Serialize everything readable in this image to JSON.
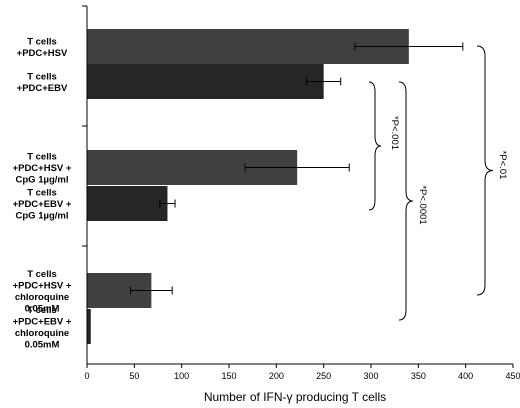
{
  "chart_data": {
    "type": "bar",
    "orientation": "horizontal",
    "categories": [
      [
        "T cells",
        "+PDC+HSV"
      ],
      [
        "T cells",
        "+PDC+EBV"
      ],
      [
        "T cells",
        "+PDC+HSV +",
        "CpG 1µg/ml"
      ],
      [
        "T cells",
        "+PDC+EBV +",
        "CpG 1µg/ml"
      ],
      [
        "T cells",
        "+PDC+HSV +",
        "chloroquine",
        "0.05mM"
      ],
      [
        "T cells",
        "+PDC+EBV +",
        "chloroquine",
        "0.05mM"
      ]
    ],
    "values": [
      340,
      250,
      222,
      85,
      68,
      4
    ],
    "errors": [
      57,
      18,
      55,
      8,
      22,
      0
    ],
    "bar_colors": [
      "#404040",
      "#262626",
      "#404040",
      "#262626",
      "#404040",
      "#262626"
    ],
    "xlabel": "Number of IFN-γ producing T cells",
    "ylabel": "",
    "title": "",
    "xlim": [
      0,
      450
    ],
    "xticks": [
      0,
      50,
      100,
      150,
      200,
      250,
      300,
      350,
      400,
      450
    ],
    "grid": false,
    "legend": "none",
    "annotations": [
      {
        "label": "*P<.001",
        "from_bar": 1,
        "to_bar": 3
      },
      {
        "label": "*P<.0001",
        "from_bar": 1,
        "to_bar": 5
      },
      {
        "label": "*P<.01",
        "from_bar": 0,
        "to_bar": 4
      }
    ]
  }
}
